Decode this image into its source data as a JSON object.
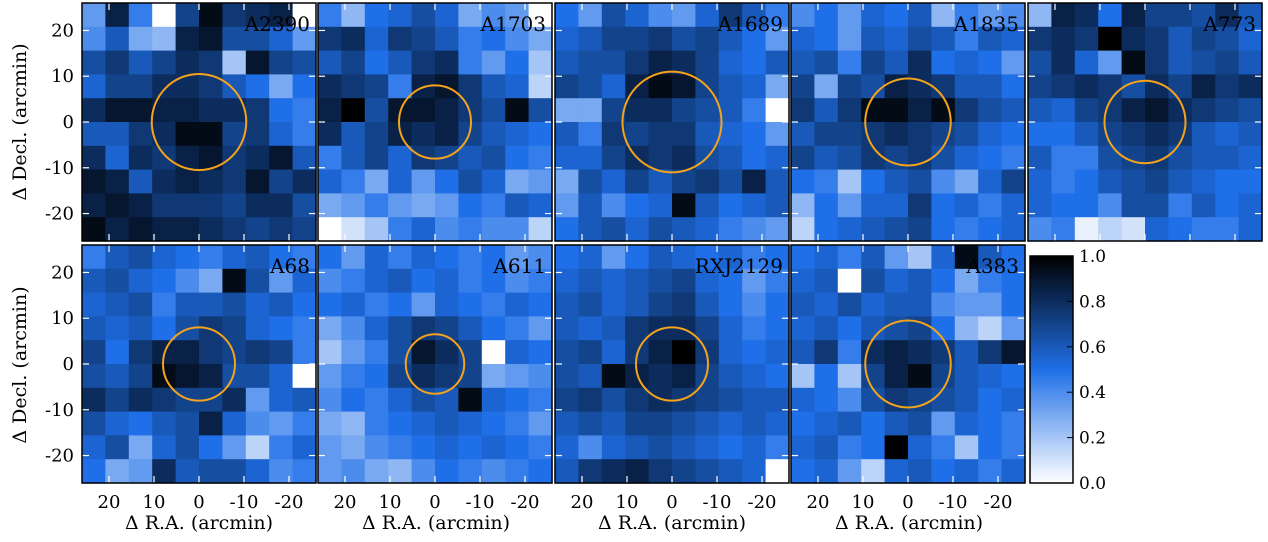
{
  "chart_data": {
    "type": "heatmap",
    "colormap": "white-to-blue-to-black",
    "colors": {
      "low": "#ffffff",
      "mid": "#1f6fe8",
      "high": "#000000",
      "label": "#f5a31a",
      "circle": "#f5a31a"
    },
    "x_axis": {
      "label": "Δ R.A. (arcmin)",
      "ticks": [
        20,
        10,
        0,
        -10,
        -20
      ],
      "tick_labels": [
        "20",
        "10",
        "0",
        "-10",
        "-20"
      ],
      "range": [
        26,
        -26
      ]
    },
    "y_axis": {
      "label": "Δ Decl. (arcmin)",
      "ticks": [
        20,
        10,
        0,
        -10,
        -20
      ],
      "tick_labels": [
        "20",
        "10",
        "0",
        "-10",
        "-20"
      ],
      "range": [
        -26,
        26
      ]
    },
    "colorbar": {
      "ticks": [
        0.0,
        0.2,
        0.4,
        0.6,
        0.8,
        1.0
      ],
      "tick_labels": [
        "0.0",
        "0.2",
        "0.4",
        "0.6",
        "0.8",
        "1.0"
      ],
      "range": [
        0.0,
        1.0
      ]
    },
    "panels": [
      {
        "name": "A2390",
        "circle_radius": 10.5,
        "grid": [
          [
            0.35,
            0.85,
            0.45,
            0.0,
            0.7,
            0.95,
            0.75,
            0.8,
            0.85,
            0.0
          ],
          [
            0.4,
            0.6,
            0.3,
            0.25,
            0.85,
            0.9,
            0.65,
            0.65,
            0.55,
            0.35
          ],
          [
            0.65,
            0.75,
            0.6,
            0.7,
            0.8,
            0.75,
            0.2,
            0.9,
            0.7,
            0.65
          ],
          [
            0.55,
            0.7,
            0.7,
            0.8,
            0.8,
            0.75,
            0.6,
            0.5,
            0.3,
            0.5
          ],
          [
            0.8,
            0.9,
            0.9,
            0.85,
            0.85,
            0.8,
            0.8,
            0.75,
            0.5,
            0.45
          ],
          [
            0.6,
            0.6,
            0.75,
            0.8,
            0.95,
            0.95,
            0.7,
            0.75,
            0.55,
            0.45
          ],
          [
            0.8,
            0.55,
            0.8,
            0.75,
            0.85,
            0.9,
            0.75,
            0.8,
            0.9,
            0.6
          ],
          [
            0.9,
            0.85,
            0.6,
            0.8,
            0.85,
            0.8,
            0.75,
            0.9,
            0.7,
            0.8
          ],
          [
            0.85,
            0.9,
            0.85,
            0.75,
            0.75,
            0.75,
            0.7,
            0.8,
            0.8,
            0.65
          ],
          [
            0.95,
            0.85,
            0.9,
            0.85,
            0.85,
            0.8,
            0.75,
            0.7,
            0.75,
            0.7
          ]
        ]
      },
      {
        "name": "A1703",
        "circle_radius": 8.0,
        "grid": [
          [
            0.45,
            0.25,
            0.5,
            0.55,
            0.65,
            0.55,
            0.3,
            0.4,
            0.35,
            0.0
          ],
          [
            0.75,
            0.8,
            0.55,
            0.75,
            0.7,
            0.6,
            0.45,
            0.5,
            0.4,
            0.3
          ],
          [
            0.6,
            0.7,
            0.5,
            0.6,
            0.75,
            0.8,
            0.45,
            0.35,
            0.5,
            0.2
          ],
          [
            0.8,
            0.75,
            0.7,
            0.45,
            0.85,
            0.9,
            0.75,
            0.6,
            0.55,
            0.15
          ],
          [
            0.85,
            1.0,
            0.65,
            0.9,
            0.9,
            0.85,
            0.75,
            0.65,
            0.95,
            0.65
          ],
          [
            0.8,
            0.6,
            0.7,
            0.85,
            0.8,
            0.85,
            0.7,
            0.6,
            0.55,
            0.5
          ],
          [
            0.45,
            0.6,
            0.7,
            0.55,
            0.75,
            0.7,
            0.6,
            0.65,
            0.5,
            0.45
          ],
          [
            0.55,
            0.45,
            0.3,
            0.55,
            0.35,
            0.5,
            0.65,
            0.55,
            0.3,
            0.35
          ],
          [
            0.3,
            0.35,
            0.45,
            0.35,
            0.3,
            0.35,
            0.5,
            0.45,
            0.6,
            0.55
          ],
          [
            0.0,
            0.1,
            0.2,
            0.45,
            0.55,
            0.4,
            0.45,
            0.4,
            0.4,
            0.15
          ]
        ]
      },
      {
        "name": "A1689",
        "circle_radius": 11.0,
        "grid": [
          [
            0.5,
            0.35,
            0.65,
            0.55,
            0.4,
            0.35,
            0.55,
            0.75,
            0.6,
            0.45
          ],
          [
            0.55,
            0.6,
            0.7,
            0.7,
            0.75,
            0.65,
            0.7,
            0.6,
            0.5,
            0.35
          ],
          [
            0.6,
            0.65,
            0.65,
            0.75,
            0.85,
            0.8,
            0.7,
            0.55,
            0.5,
            0.6
          ],
          [
            0.7,
            0.65,
            0.55,
            0.85,
            0.95,
            0.9,
            0.7,
            0.6,
            0.55,
            0.3
          ],
          [
            0.3,
            0.3,
            0.7,
            0.8,
            0.8,
            0.7,
            0.65,
            0.6,
            0.45,
            0.0
          ],
          [
            0.6,
            0.45,
            0.75,
            0.7,
            0.75,
            0.75,
            0.6,
            0.55,
            0.5,
            0.35
          ],
          [
            0.55,
            0.55,
            0.7,
            0.8,
            0.75,
            0.8,
            0.65,
            0.6,
            0.5,
            0.55
          ],
          [
            0.3,
            0.65,
            0.55,
            0.7,
            0.6,
            0.7,
            0.75,
            0.65,
            0.85,
            0.6
          ],
          [
            0.35,
            0.6,
            0.4,
            0.5,
            0.55,
            0.95,
            0.6,
            0.5,
            0.55,
            0.6
          ],
          [
            0.5,
            0.6,
            0.65,
            0.55,
            0.65,
            0.6,
            0.55,
            0.45,
            0.4,
            0.35
          ]
        ]
      },
      {
        "name": "A1835",
        "circle_radius": 9.5,
        "grid": [
          [
            0.4,
            0.5,
            0.35,
            0.55,
            0.5,
            0.6,
            0.25,
            0.45,
            0.35,
            0.4
          ],
          [
            0.55,
            0.5,
            0.35,
            0.6,
            0.55,
            0.65,
            0.6,
            0.45,
            0.6,
            0.55
          ],
          [
            0.6,
            0.65,
            0.45,
            0.7,
            0.6,
            0.8,
            0.5,
            0.55,
            0.5,
            0.35
          ],
          [
            0.7,
            0.3,
            0.7,
            0.65,
            0.85,
            0.8,
            0.75,
            0.6,
            0.6,
            0.5
          ],
          [
            0.75,
            0.6,
            0.75,
            0.95,
            0.95,
            0.85,
            0.95,
            0.75,
            0.65,
            0.6
          ],
          [
            0.6,
            0.7,
            0.7,
            0.75,
            0.8,
            0.75,
            0.7,
            0.65,
            0.55,
            0.5
          ],
          [
            0.7,
            0.6,
            0.65,
            0.75,
            0.7,
            0.75,
            0.65,
            0.55,
            0.5,
            0.45
          ],
          [
            0.5,
            0.45,
            0.2,
            0.5,
            0.6,
            0.65,
            0.4,
            0.3,
            0.55,
            0.7
          ],
          [
            0.25,
            0.5,
            0.35,
            0.55,
            0.55,
            0.75,
            0.5,
            0.55,
            0.45,
            0.55
          ],
          [
            0.15,
            0.5,
            0.55,
            0.6,
            0.65,
            0.7,
            0.5,
            0.45,
            0.5,
            0.55
          ]
        ]
      },
      {
        "name": "A773",
        "circle_radius": 9.0,
        "grid": [
          [
            0.25,
            0.85,
            0.8,
            0.5,
            0.85,
            0.7,
            0.7,
            0.65,
            0.8,
            0.6
          ],
          [
            0.75,
            0.8,
            0.75,
            1.0,
            0.8,
            0.75,
            0.6,
            0.7,
            0.65,
            0.55
          ],
          [
            0.65,
            0.8,
            0.55,
            0.35,
            0.95,
            0.75,
            0.6,
            0.65,
            0.7,
            0.6
          ],
          [
            0.7,
            0.75,
            0.8,
            0.75,
            0.65,
            0.8,
            0.7,
            0.85,
            0.75,
            0.8
          ],
          [
            0.6,
            0.55,
            0.7,
            0.75,
            0.85,
            0.9,
            0.8,
            0.75,
            0.7,
            0.65
          ],
          [
            0.5,
            0.5,
            0.6,
            0.7,
            0.75,
            0.8,
            0.75,
            0.6,
            0.55,
            0.6
          ],
          [
            0.6,
            0.45,
            0.45,
            0.65,
            0.7,
            0.75,
            0.65,
            0.6,
            0.6,
            0.55
          ],
          [
            0.55,
            0.45,
            0.5,
            0.6,
            0.65,
            0.7,
            0.6,
            0.55,
            0.5,
            0.5
          ],
          [
            0.55,
            0.5,
            0.5,
            0.4,
            0.65,
            0.65,
            0.45,
            0.6,
            0.5,
            0.55
          ],
          [
            0.4,
            0.45,
            0.05,
            0.15,
            0.1,
            0.55,
            0.5,
            0.45,
            0.45,
            0.55
          ]
        ]
      },
      {
        "name": "A68",
        "circle_radius": 8.0,
        "grid": [
          [
            0.45,
            0.6,
            0.65,
            0.55,
            0.5,
            0.45,
            0.55,
            0.6,
            0.5,
            0.45
          ],
          [
            0.6,
            0.65,
            0.55,
            0.5,
            0.4,
            0.3,
            0.95,
            0.65,
            0.35,
            0.55
          ],
          [
            0.55,
            0.6,
            0.65,
            0.45,
            0.6,
            0.6,
            0.65,
            0.55,
            0.6,
            0.5
          ],
          [
            0.6,
            0.55,
            0.6,
            0.5,
            0.65,
            0.75,
            0.7,
            0.55,
            0.5,
            0.45
          ],
          [
            0.7,
            0.5,
            0.75,
            0.85,
            0.85,
            0.75,
            0.7,
            0.75,
            0.7,
            0.45
          ],
          [
            0.65,
            0.6,
            0.7,
            0.95,
            0.9,
            0.85,
            0.65,
            0.65,
            0.55,
            0.0
          ],
          [
            0.8,
            0.7,
            0.8,
            0.75,
            0.7,
            0.7,
            0.8,
            0.35,
            0.55,
            0.6
          ],
          [
            0.65,
            0.55,
            0.5,
            0.6,
            0.65,
            0.85,
            0.55,
            0.4,
            0.35,
            0.45
          ],
          [
            0.55,
            0.65,
            0.3,
            0.55,
            0.65,
            0.5,
            0.35,
            0.15,
            0.45,
            0.55
          ],
          [
            0.5,
            0.3,
            0.35,
            0.8,
            0.6,
            0.65,
            0.65,
            0.55,
            0.4,
            0.45
          ]
        ]
      },
      {
        "name": "A611",
        "circle_radius": 6.5,
        "grid": [
          [
            0.5,
            0.35,
            0.55,
            0.45,
            0.55,
            0.5,
            0.45,
            0.5,
            0.35,
            0.4
          ],
          [
            0.4,
            0.45,
            0.55,
            0.6,
            0.5,
            0.55,
            0.45,
            0.5,
            0.4,
            0.45
          ],
          [
            0.5,
            0.55,
            0.45,
            0.5,
            0.35,
            0.55,
            0.5,
            0.45,
            0.55,
            0.5
          ],
          [
            0.3,
            0.4,
            0.55,
            0.65,
            0.75,
            0.7,
            0.6,
            0.5,
            0.45,
            0.35
          ],
          [
            0.2,
            0.35,
            0.45,
            0.65,
            0.9,
            0.8,
            0.7,
            0.0,
            0.55,
            0.5
          ],
          [
            0.35,
            0.45,
            0.5,
            0.7,
            0.8,
            0.75,
            0.7,
            0.3,
            0.35,
            0.4
          ],
          [
            0.4,
            0.5,
            0.45,
            0.55,
            0.65,
            0.6,
            0.95,
            0.55,
            0.5,
            0.45
          ],
          [
            0.3,
            0.25,
            0.45,
            0.5,
            0.55,
            0.6,
            0.55,
            0.5,
            0.45,
            0.35
          ],
          [
            0.35,
            0.3,
            0.4,
            0.45,
            0.5,
            0.55,
            0.5,
            0.55,
            0.5,
            0.45
          ],
          [
            0.35,
            0.4,
            0.3,
            0.25,
            0.4,
            0.5,
            0.45,
            0.4,
            0.45,
            0.5
          ]
        ]
      },
      {
        "name": "RXJ2129",
        "circle_radius": 8.0,
        "grid": [
          [
            0.5,
            0.55,
            0.35,
            0.5,
            0.6,
            0.55,
            0.5,
            0.55,
            0.45,
            0.5
          ],
          [
            0.55,
            0.6,
            0.55,
            0.6,
            0.65,
            0.7,
            0.55,
            0.5,
            0.35,
            0.45
          ],
          [
            0.6,
            0.65,
            0.55,
            0.6,
            0.7,
            0.75,
            0.6,
            0.5,
            0.4,
            0.5
          ],
          [
            0.6,
            0.55,
            0.6,
            0.75,
            0.8,
            0.8,
            0.7,
            0.55,
            0.45,
            0.5
          ],
          [
            0.65,
            0.7,
            0.55,
            0.75,
            0.85,
            1.0,
            0.75,
            0.55,
            0.5,
            0.55
          ],
          [
            0.65,
            0.6,
            0.95,
            0.85,
            0.8,
            0.85,
            0.7,
            0.6,
            0.55,
            0.5
          ],
          [
            0.7,
            0.75,
            0.65,
            0.75,
            0.8,
            0.75,
            0.7,
            0.65,
            0.6,
            0.6
          ],
          [
            0.6,
            0.65,
            0.6,
            0.7,
            0.7,
            0.65,
            0.6,
            0.55,
            0.6,
            0.55
          ],
          [
            0.55,
            0.4,
            0.55,
            0.6,
            0.65,
            0.6,
            0.55,
            0.5,
            0.55,
            0.45
          ],
          [
            0.6,
            0.75,
            0.8,
            0.85,
            0.75,
            0.7,
            0.65,
            0.6,
            0.55,
            0.0
          ]
        ]
      },
      {
        "name": "A383",
        "circle_radius": 9.5,
        "grid": [
          [
            0.5,
            0.55,
            0.45,
            0.6,
            0.35,
            0.2,
            0.55,
            0.95,
            0.6,
            0.5
          ],
          [
            0.55,
            0.6,
            0.0,
            0.65,
            0.55,
            0.6,
            0.5,
            0.3,
            0.45,
            0.5
          ],
          [
            0.6,
            0.55,
            0.65,
            0.55,
            0.6,
            0.6,
            0.4,
            0.35,
            0.35,
            0.5
          ],
          [
            0.55,
            0.6,
            0.5,
            0.6,
            0.65,
            0.7,
            0.5,
            0.25,
            0.15,
            0.35
          ],
          [
            0.6,
            0.75,
            0.45,
            0.8,
            0.85,
            0.8,
            0.75,
            0.6,
            0.75,
            0.9
          ],
          [
            0.2,
            0.5,
            0.2,
            0.7,
            0.85,
            0.95,
            0.7,
            0.6,
            0.55,
            0.5
          ],
          [
            0.55,
            0.5,
            0.4,
            0.65,
            0.75,
            0.7,
            0.65,
            0.6,
            0.5,
            0.55
          ],
          [
            0.5,
            0.55,
            0.6,
            0.5,
            0.6,
            0.65,
            0.35,
            0.55,
            0.5,
            0.45
          ],
          [
            0.55,
            0.6,
            0.45,
            0.5,
            1.0,
            0.55,
            0.45,
            0.2,
            0.5,
            0.45
          ],
          [
            0.5,
            0.55,
            0.35,
            0.15,
            0.55,
            0.6,
            0.5,
            0.55,
            0.45,
            0.55
          ]
        ]
      }
    ]
  }
}
